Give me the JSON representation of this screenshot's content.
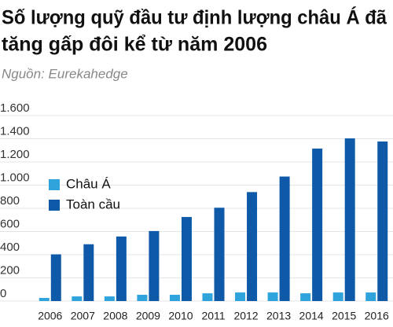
{
  "chart_data": {
    "type": "bar",
    "title": [
      "Số lượng quỹ đầu tư định lượng châu Á đã",
      "tăng gấp đôi kể từ năm 2006"
    ],
    "subtitle": "Nguồn: Eurekahedge",
    "categories": [
      "2006",
      "2007",
      "2008",
      "2009",
      "2010",
      "2011",
      "2012",
      "2013",
      "2014",
      "2015",
      "2016"
    ],
    "series": [
      {
        "name": "Châu Á",
        "color": "#2ea3dc",
        "values": [
          27,
          40,
          40,
          54,
          54,
          67,
          74,
          74,
          67,
          74,
          74
        ]
      },
      {
        "name": "Toàn cầu",
        "color": "#0e5aa8",
        "values": [
          403,
          490,
          557,
          604,
          725,
          805,
          940,
          1074,
          1315,
          1403,
          1376
        ]
      }
    ],
    "ylim": [
      0,
      1600
    ],
    "yticks": [
      0,
      {
        "value": 200,
        "label": "200"
      },
      {
        "value": 400,
        "label": "400"
      },
      {
        "value": 600,
        "label": "600"
      },
      {
        "value": 800,
        "label": "800"
      },
      {
        "value": 1000,
        "label": "1.000"
      },
      {
        "value": 1200,
        "label": "1.200"
      },
      {
        "value": 1400,
        "label": "1.400"
      },
      {
        "value": 1600,
        "label": "1.600"
      }
    ],
    "grid": true,
    "legend": "upper left"
  }
}
